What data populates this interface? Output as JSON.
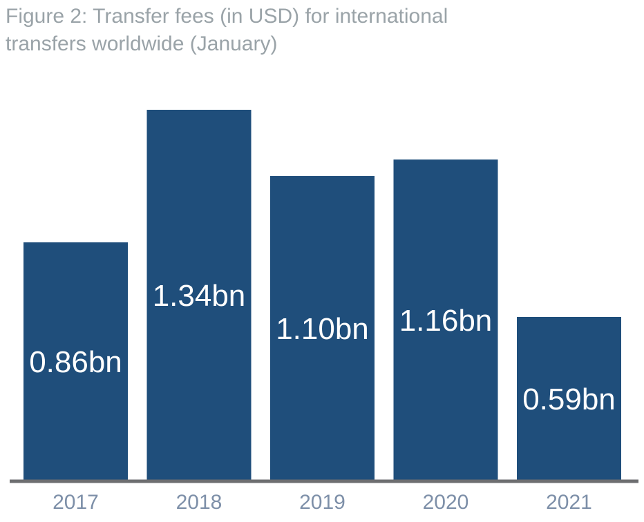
{
  "title_lines": [
    "Figure 2: Transfer fees (in USD) for international",
    "transfers worldwide (January)"
  ],
  "colors": {
    "bar": "#1f4e7b",
    "axis": "#6d6e70",
    "label": "#ffffff",
    "tick": "#7d8fa8",
    "title": "#9aa3a8"
  },
  "chart_data": {
    "type": "bar",
    "title": "Figure 2: Transfer fees (in USD) for international transfers worldwide (January)",
    "categories": [
      "2017",
      "2018",
      "2019",
      "2020",
      "2021"
    ],
    "values": [
      0.86,
      1.34,
      1.1,
      1.16,
      0.59
    ],
    "data_labels": [
      "0.86bn",
      "1.34bn",
      "1.10bn",
      "1.16bn",
      "0.59bn"
    ],
    "xlabel": "",
    "ylabel": "",
    "ylim": [
      0,
      1.5
    ],
    "grid": false,
    "legend": "none"
  }
}
